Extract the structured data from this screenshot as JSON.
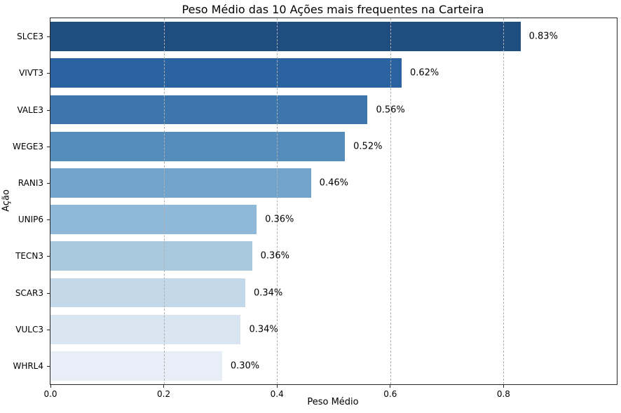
{
  "chart_data": {
    "type": "bar",
    "orientation": "horizontal",
    "title": "Peso Médio das 10 Ações mais frequentes na Carteira",
    "xlabel": "Peso Médio",
    "ylabel": "Ação",
    "categories": [
      "SLCE3",
      "VIVT3",
      "VALE3",
      "WEGE3",
      "RANI3",
      "UNIP6",
      "TECN3",
      "SCAR3",
      "VULC3",
      "WHRL4"
    ],
    "values": [
      0.83,
      0.62,
      0.56,
      0.52,
      0.46,
      0.364,
      0.356,
      0.344,
      0.336,
      0.303
    ],
    "value_labels": [
      "0.83%",
      "0.62%",
      "0.56%",
      "0.52%",
      "0.46%",
      "0.36%",
      "0.36%",
      "0.34%",
      "0.34%",
      "0.30%"
    ],
    "bar_colors": [
      "#1f4d80",
      "#2b63a0",
      "#3c76ad",
      "#548cbb",
      "#72a4cb",
      "#8fb9d8",
      "#a9cade",
      "#c3d8e9",
      "#d9e5f1",
      "#e8eef7"
    ],
    "xlim": [
      0,
      1.0
    ],
    "xtick_labels": [
      "0.0",
      "0.2",
      "0.4",
      "0.6",
      "0.8"
    ],
    "xtick_values": [
      0,
      0.2,
      0.4,
      0.6,
      0.8
    ],
    "grid": "vertical-dashed",
    "legend": "none",
    "colors": {
      "background": "#ffffff",
      "spine": "#262626",
      "gridline": "#b0b0b0",
      "text": "#000000"
    }
  }
}
